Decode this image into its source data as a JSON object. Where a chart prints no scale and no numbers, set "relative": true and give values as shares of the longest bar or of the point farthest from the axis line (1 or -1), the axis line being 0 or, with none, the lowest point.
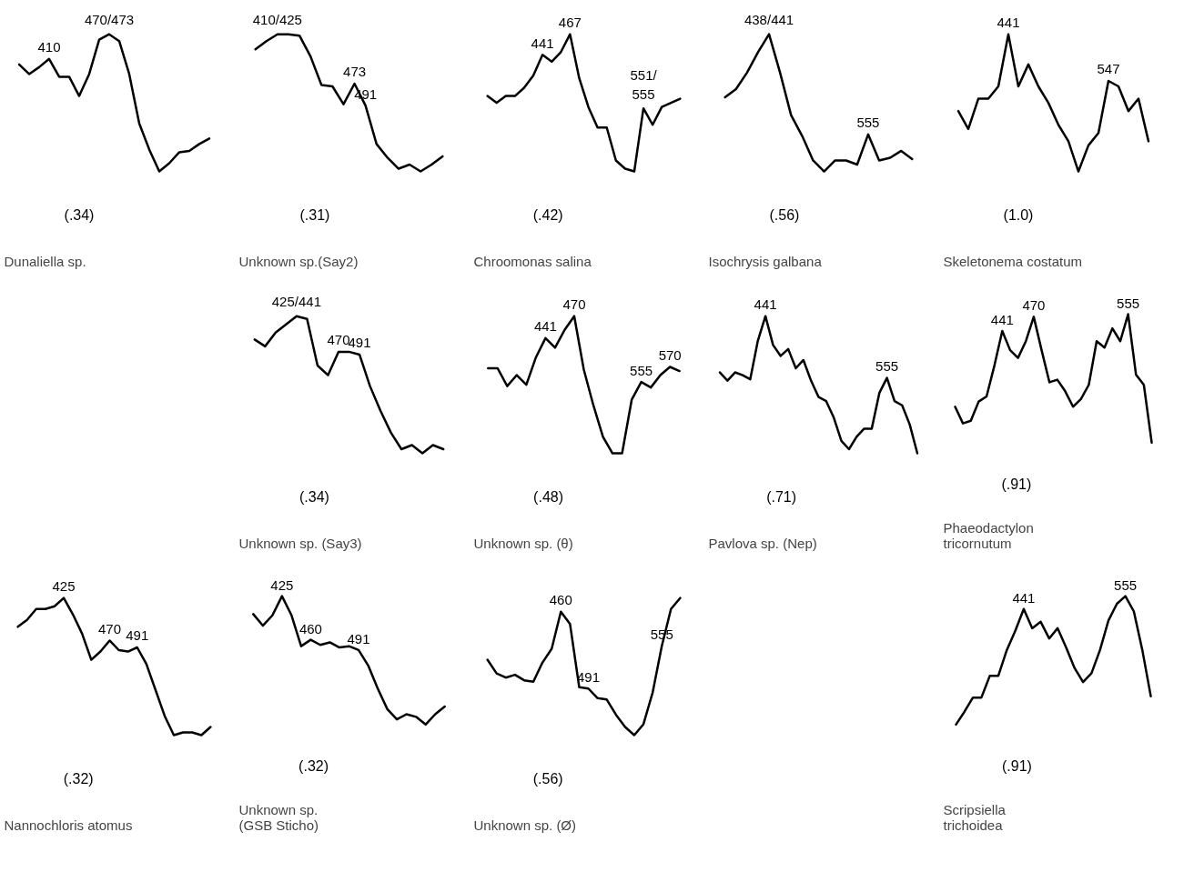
{
  "chart_data": [
    {
      "type": "line",
      "relative": true,
      "color": "#000000",
      "title": "Dunaliella sp.",
      "subtitle": "(.34)",
      "categories": [
        null,
        null,
        null,
        null,
        null,
        null,
        null,
        null,
        null,
        null,
        null,
        null,
        null,
        null,
        null,
        null,
        null,
        null,
        null,
        null
      ],
      "values": [
        0.78,
        0.71,
        0.76,
        0.82,
        0.69,
        0.69,
        0.55,
        0.71,
        0.96,
        1.0,
        0.95,
        0.71,
        0.35,
        0.16,
        0,
        0.06,
        0.14,
        0.15,
        0.2,
        0.24
      ],
      "annotations": [
        {
          "text": "410",
          "y": 0.82
        },
        {
          "text": "470/473",
          "y": 1.0
        }
      ]
    },
    {
      "type": "line",
      "relative": true,
      "color": "#000000",
      "title": "Unknown sp.(Say2)",
      "subtitle": "(.31)",
      "categories": [
        null,
        null,
        null,
        null,
        null,
        null,
        null,
        null,
        null,
        null,
        null,
        null,
        null,
        null,
        null,
        null,
        null,
        null
      ],
      "values": [
        0.89,
        0.95,
        1.0,
        1.0,
        0.99,
        0.84,
        0.63,
        0.62,
        0.49,
        0.64,
        0.48,
        0.2,
        0.1,
        0.02,
        0.05,
        0,
        0.05,
        0.11
      ],
      "annotations": [
        {
          "text": "410/425",
          "y": 1.0
        },
        {
          "text": "473",
          "y": 0.64
        },
        {
          "text": "491",
          "y": 0.48
        }
      ]
    },
    {
      "type": "line",
      "relative": true,
      "color": "#000000",
      "title": "Chroomonas salina",
      "subtitle": "(.42)",
      "categories": [
        null,
        null,
        null,
        null,
        null,
        null,
        null,
        null,
        null,
        null,
        null,
        null,
        null,
        null,
        null,
        null,
        null,
        null,
        null,
        null,
        null,
        null
      ],
      "values": [
        0.55,
        0.5,
        0.55,
        0.55,
        0.61,
        0.7,
        0.85,
        0.8,
        0.87,
        1.0,
        0.68,
        0.47,
        0.32,
        0.32,
        0.08,
        0.02,
        0,
        0.46,
        0.34,
        0.47,
        0.5,
        0.53
      ],
      "annotations": [
        {
          "text": "441",
          "y": 0.85
        },
        {
          "text": "467",
          "y": 1.0
        },
        {
          "text": "551/\n555",
          "y": 0.46
        }
      ]
    },
    {
      "type": "line",
      "relative": true,
      "color": "#000000",
      "title": "Isochrysis galbana",
      "subtitle": "(.56)",
      "categories": [
        null,
        null,
        null,
        null,
        null,
        null,
        null,
        null,
        null,
        null,
        null,
        null,
        null,
        null,
        null,
        null,
        null,
        null
      ],
      "values": [
        0.54,
        0.6,
        0.72,
        0.87,
        1.0,
        0.72,
        0.41,
        0.26,
        0.08,
        0,
        0.08,
        0.08,
        0.05,
        0.27,
        0.08,
        0.1,
        0.15,
        0.09
      ],
      "annotations": [
        {
          "text": "438/441",
          "y": 1.0
        },
        {
          "text": "555",
          "y": 0.27
        }
      ]
    },
    {
      "type": "line",
      "relative": true,
      "color": "#000000",
      "title": "Skeletonema costatum",
      "subtitle": "(1.0)",
      "categories": [
        null,
        null,
        null,
        null,
        null,
        null,
        null,
        null,
        null,
        null,
        null,
        null,
        null,
        null,
        null,
        null,
        null,
        null,
        null,
        null
      ],
      "values": [
        0.44,
        0.31,
        0.53,
        0.53,
        0.62,
        1.0,
        0.62,
        0.78,
        0.62,
        0.5,
        0.34,
        0.22,
        0,
        0.19,
        0.28,
        0.66,
        0.62,
        0.44,
        0.53,
        0.22
      ],
      "annotations": [
        {
          "text": "441",
          "y": 1.0
        },
        {
          "text": "547",
          "y": 0.66
        }
      ]
    },
    {
      "type": "line",
      "relative": true,
      "color": "#000000",
      "title": "Unknown sp.  (Say3)",
      "subtitle": "(.34)",
      "categories": [
        null,
        null,
        null,
        null,
        null,
        null,
        null,
        null,
        null,
        null,
        null,
        null,
        null,
        null,
        null,
        null,
        null,
        null,
        null
      ],
      "values": [
        0.83,
        0.78,
        0.88,
        0.94,
        1.0,
        0.98,
        0.64,
        0.57,
        0.74,
        0.74,
        0.72,
        0.49,
        0.31,
        0.15,
        0.03,
        0.06,
        0,
        0.06,
        0.03
      ],
      "annotations": [
        {
          "text": "425/441",
          "y": 1.0
        },
        {
          "text": "470",
          "y": 0.74
        },
        {
          "text": "491",
          "y": 0.72
        }
      ]
    },
    {
      "type": "line",
      "relative": true,
      "color": "#000000",
      "title": "Unknown sp.    (θ)",
      "subtitle": "(.48)",
      "categories": [
        null,
        null,
        null,
        null,
        null,
        null,
        null,
        null,
        null,
        null,
        null,
        null,
        null,
        null,
        null,
        null,
        null,
        null,
        null,
        null,
        null
      ],
      "values": [
        0.62,
        0.62,
        0.49,
        0.57,
        0.5,
        0.7,
        0.84,
        0.77,
        0.9,
        1.0,
        0.61,
        0.35,
        0.12,
        0,
        0,
        0.39,
        0.52,
        0.48,
        0.57,
        0.63,
        0.6
      ],
      "annotations": [
        {
          "text": "441",
          "y": 0.84
        },
        {
          "text": "470",
          "y": 1.0
        },
        {
          "text": "555",
          "y": 0.52
        },
        {
          "text": "570",
          "y": 0.63
        }
      ]
    },
    {
      "type": "line",
      "relative": true,
      "color": "#000000",
      "title": "Pavlova sp.     (Nep)",
      "subtitle": "(.71)",
      "categories": [
        null,
        null,
        null,
        null,
        null,
        null,
        null,
        null,
        null,
        null,
        null,
        null,
        null,
        null,
        null,
        null,
        null,
        null,
        null,
        null,
        null,
        null,
        null,
        null,
        null,
        null,
        null
      ],
      "values": [
        0.59,
        0.53,
        0.59,
        0.57,
        0.54,
        0.82,
        1.0,
        0.79,
        0.71,
        0.76,
        0.62,
        0.68,
        0.53,
        0.41,
        0.38,
        0.26,
        0.09,
        0.03,
        0.12,
        0.18,
        0.18,
        0.44,
        0.55,
        0.38,
        0.35,
        0.21,
        0
      ],
      "annotations": [
        {
          "text": "441",
          "y": 1.0
        },
        {
          "text": "555",
          "y": 0.55
        }
      ]
    },
    {
      "type": "line",
      "relative": true,
      "color": "#000000",
      "title": "Phaeodactylon\n    tricornutum",
      "subtitle": "(.91)",
      "categories": [
        null,
        null,
        null,
        null,
        null,
        null,
        null,
        null,
        null,
        null,
        null,
        null,
        null,
        null,
        null,
        null,
        null,
        null,
        null,
        null,
        null,
        null,
        null,
        null,
        null,
        null
      ],
      "values": [
        0.28,
        0.15,
        0.17,
        0.32,
        0.36,
        0.6,
        0.87,
        0.72,
        0.66,
        0.79,
        0.98,
        0.72,
        0.47,
        0.49,
        0.4,
        0.28,
        0.34,
        0.45,
        0.79,
        0.74,
        0.89,
        0.79,
        1.0,
        0.53,
        0.45,
        0
      ],
      "annotations": [
        {
          "text": "441",
          "y": 0.87
        },
        {
          "text": "470",
          "y": 0.98
        },
        {
          "text": "555",
          "y": 1.0
        }
      ]
    },
    {
      "type": "line",
      "relative": true,
      "color": "#000000",
      "title": "Nannochloris atomus",
      "subtitle": "(.32)",
      "categories": [
        null,
        null,
        null,
        null,
        null,
        null,
        null,
        null,
        null,
        null,
        null,
        null,
        null,
        null,
        null,
        null,
        null,
        null,
        null,
        null,
        null,
        null
      ],
      "values": [
        0.79,
        0.84,
        0.92,
        0.92,
        0.94,
        1.0,
        0.88,
        0.74,
        0.55,
        0.61,
        0.69,
        0.62,
        0.61,
        0.64,
        0.52,
        0.33,
        0.14,
        0,
        0.02,
        0.02,
        0,
        0.06
      ],
      "annotations": [
        {
          "text": "425",
          "y": 1.0
        },
        {
          "text": "470",
          "y": 0.69
        },
        {
          "text": "491",
          "y": 0.64
        }
      ]
    },
    {
      "type": "line",
      "relative": true,
      "color": "#000000",
      "title": "Unknown sp.\n(GSB Sticho)",
      "subtitle": "(.32)",
      "categories": [
        null,
        null,
        null,
        null,
        null,
        null,
        null,
        null,
        null,
        null,
        null,
        null,
        null,
        null,
        null,
        null,
        null,
        null,
        null,
        null,
        null
      ],
      "values": [
        0.86,
        0.77,
        0.85,
        1.0,
        0.85,
        0.61,
        0.66,
        0.62,
        0.64,
        0.6,
        0.61,
        0.58,
        0.46,
        0.28,
        0.12,
        0.04,
        0.08,
        0.06,
        0,
        0.08,
        0.14
      ],
      "annotations": [
        {
          "text": "425",
          "y": 1.0
        },
        {
          "text": "460",
          "y": 0.66
        },
        {
          "text": "491",
          "y": 0.58
        }
      ]
    },
    {
      "type": "line",
      "relative": true,
      "color": "#000000",
      "title": "Unknown sp. (Ø)",
      "subtitle": "(.56)",
      "categories": [
        null,
        null,
        null,
        null,
        null,
        null,
        null,
        null,
        null,
        null,
        null,
        null,
        null,
        null,
        null,
        null,
        null,
        null,
        null,
        null,
        null,
        null
      ],
      "values": [
        0.55,
        0.45,
        0.42,
        0.44,
        0.4,
        0.39,
        0.53,
        0.63,
        0.9,
        0.81,
        0.35,
        0.34,
        0.27,
        0.26,
        0.15,
        0.06,
        0,
        0.08,
        0.31,
        0.65,
        0.92,
        1.0
      ],
      "annotations": [
        {
          "text": "460",
          "y": 0.9
        },
        {
          "text": "491",
          "y": 0.34
        },
        {
          "text": "555",
          "y": 0.65
        }
      ]
    },
    {
      "type": "line",
      "relative": true,
      "color": "#000000",
      "title": "Scripsiella\n     trichoidea",
      "subtitle": "(.91)",
      "categories": [
        null,
        null,
        null,
        null,
        null,
        null,
        null,
        null,
        null,
        null,
        null,
        null,
        null,
        null,
        null,
        null,
        null,
        null,
        null,
        null,
        null,
        null,
        null,
        null
      ],
      "values": [
        0,
        0.1,
        0.21,
        0.21,
        0.38,
        0.38,
        0.58,
        0.73,
        0.9,
        0.75,
        0.8,
        0.67,
        0.75,
        0.6,
        0.44,
        0.33,
        0.4,
        0.58,
        0.81,
        0.94,
        1.0,
        0.88,
        0.58,
        0.22
      ],
      "annotations": [
        {
          "text": "441",
          "y": 0.9
        },
        {
          "text": "555",
          "y": 1.0
        }
      ]
    }
  ]
}
